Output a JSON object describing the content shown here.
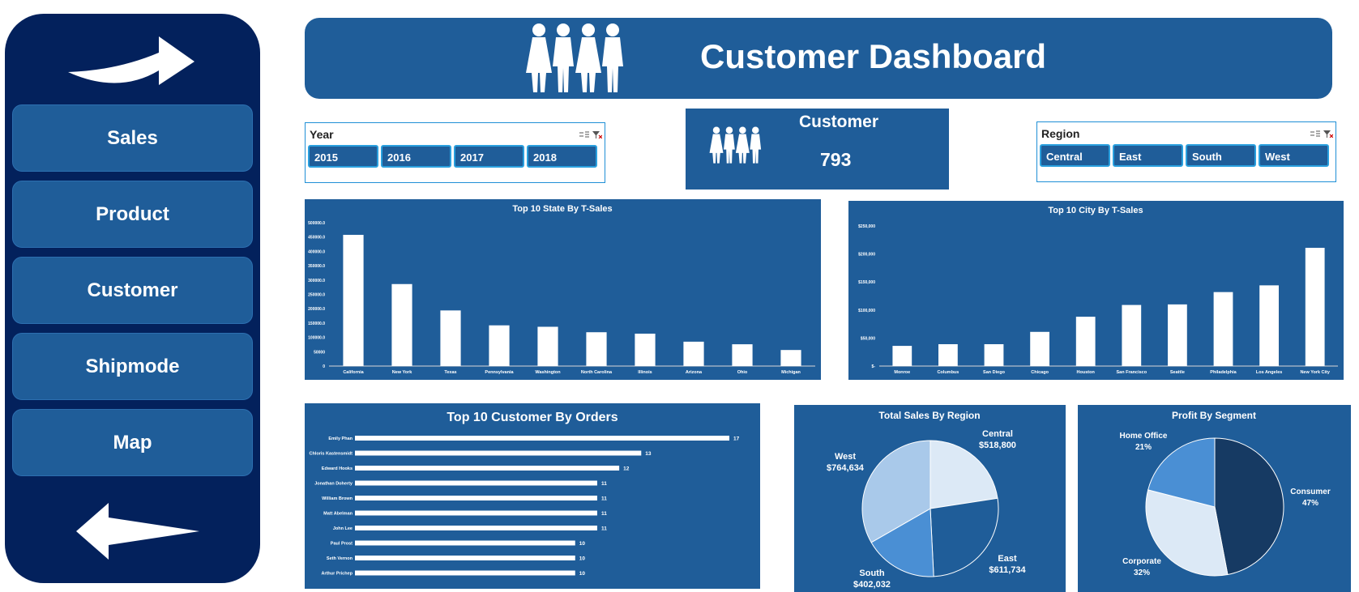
{
  "nav": {
    "items": [
      {
        "label": "Sales"
      },
      {
        "label": "Product"
      },
      {
        "label": "Customer"
      },
      {
        "label": "Shipmode"
      },
      {
        "label": "Map"
      }
    ],
    "next_icon": "arrow-right-icon",
    "prev_icon": "arrow-left-icon"
  },
  "header": {
    "title": "Customer Dashboard",
    "icon": "people-group-icon"
  },
  "year_slicer": {
    "title": "Year",
    "items": [
      "2015",
      "2016",
      "2017",
      "2018"
    ]
  },
  "region_slicer": {
    "title": "Region",
    "items": [
      "Central",
      "East",
      "South",
      "West"
    ]
  },
  "kpi": {
    "label": "Customer",
    "value": "793",
    "icon": "people-group-icon"
  },
  "colors": {
    "panel": "#1f5d99",
    "sidebar": "#03215c",
    "slicer_border": "#2aa0de",
    "bar": "#ffffff",
    "region_pie": [
      "#dce9f6",
      "#1f5d99",
      "#4a8fd4",
      "#a9c9ea"
    ],
    "segment_pie": [
      "#163a63",
      "#dce9f6",
      "#4a8fd4"
    ]
  },
  "chart_data": [
    {
      "type": "bar",
      "title": "Top 10 State By T-Sales",
      "categories": [
        "California",
        "New York",
        "Texas",
        "Pennsylvania",
        "Washington",
        "North Carolina",
        "Illinois",
        "Arizona",
        "Ohio",
        "Michigan"
      ],
      "values": [
        457688,
        286000,
        194000,
        142000,
        137000,
        118000,
        113000,
        85000,
        76000,
        56000
      ],
      "yticks": [
        "0",
        "50000",
        "100000.0",
        "150000.0",
        "200000.0",
        "250000.0",
        "300000.0",
        "350000.0",
        "400000.0",
        "450000.0",
        "500000.0"
      ],
      "ylim": [
        0,
        500000
      ]
    },
    {
      "type": "bar",
      "title": "Top 10 City By T-Sales",
      "categories": [
        "Monroe",
        "Columbus",
        "San Diego",
        "Chicago",
        "Houston",
        "San Francisco",
        "Seattle",
        "Philadelphia",
        "Los Angeles",
        "New York City"
      ],
      "values": [
        36000,
        39000,
        39000,
        61000,
        88000,
        109000,
        110000,
        132000,
        144000,
        211000
      ],
      "yticks": [
        "$-",
        "$50,000",
        "$100,000",
        "$150,000",
        "$200,000",
        "$250,000"
      ],
      "ylim": [
        0,
        250000
      ]
    },
    {
      "type": "bar",
      "orientation": "horizontal",
      "title": "Top 10 Customer By Orders",
      "categories": [
        "Emily Phan",
        "Chloris Kastensmidt",
        "Edward Hooks",
        "Jonathan Doherty",
        "William Brown",
        "Matt Abelman",
        "John Lee",
        "Paul Prost",
        "Seth Vernon",
        "Arthur Prichep"
      ],
      "values": [
        17,
        13,
        12,
        11,
        11,
        11,
        11,
        10,
        10,
        10
      ],
      "xlim": [
        0,
        18
      ]
    },
    {
      "type": "pie",
      "title": "Total Sales By Region",
      "slices": [
        {
          "label": "Central",
          "value": 518800,
          "value_label": "$518,800"
        },
        {
          "label": "East",
          "value": 611734,
          "value_label": "$611,734"
        },
        {
          "label": "South",
          "value": 402032,
          "value_label": "$402,032"
        },
        {
          "label": "West",
          "value": 764634,
          "value_label": "$764,634"
        }
      ]
    },
    {
      "type": "pie",
      "title": "Profit By Segment",
      "slices": [
        {
          "label": "Consumer",
          "value": 47,
          "value_label": "47%"
        },
        {
          "label": "Corporate",
          "value": 32,
          "value_label": "32%"
        },
        {
          "label": "Home Office",
          "value": 21,
          "value_label": "21%"
        }
      ]
    }
  ]
}
